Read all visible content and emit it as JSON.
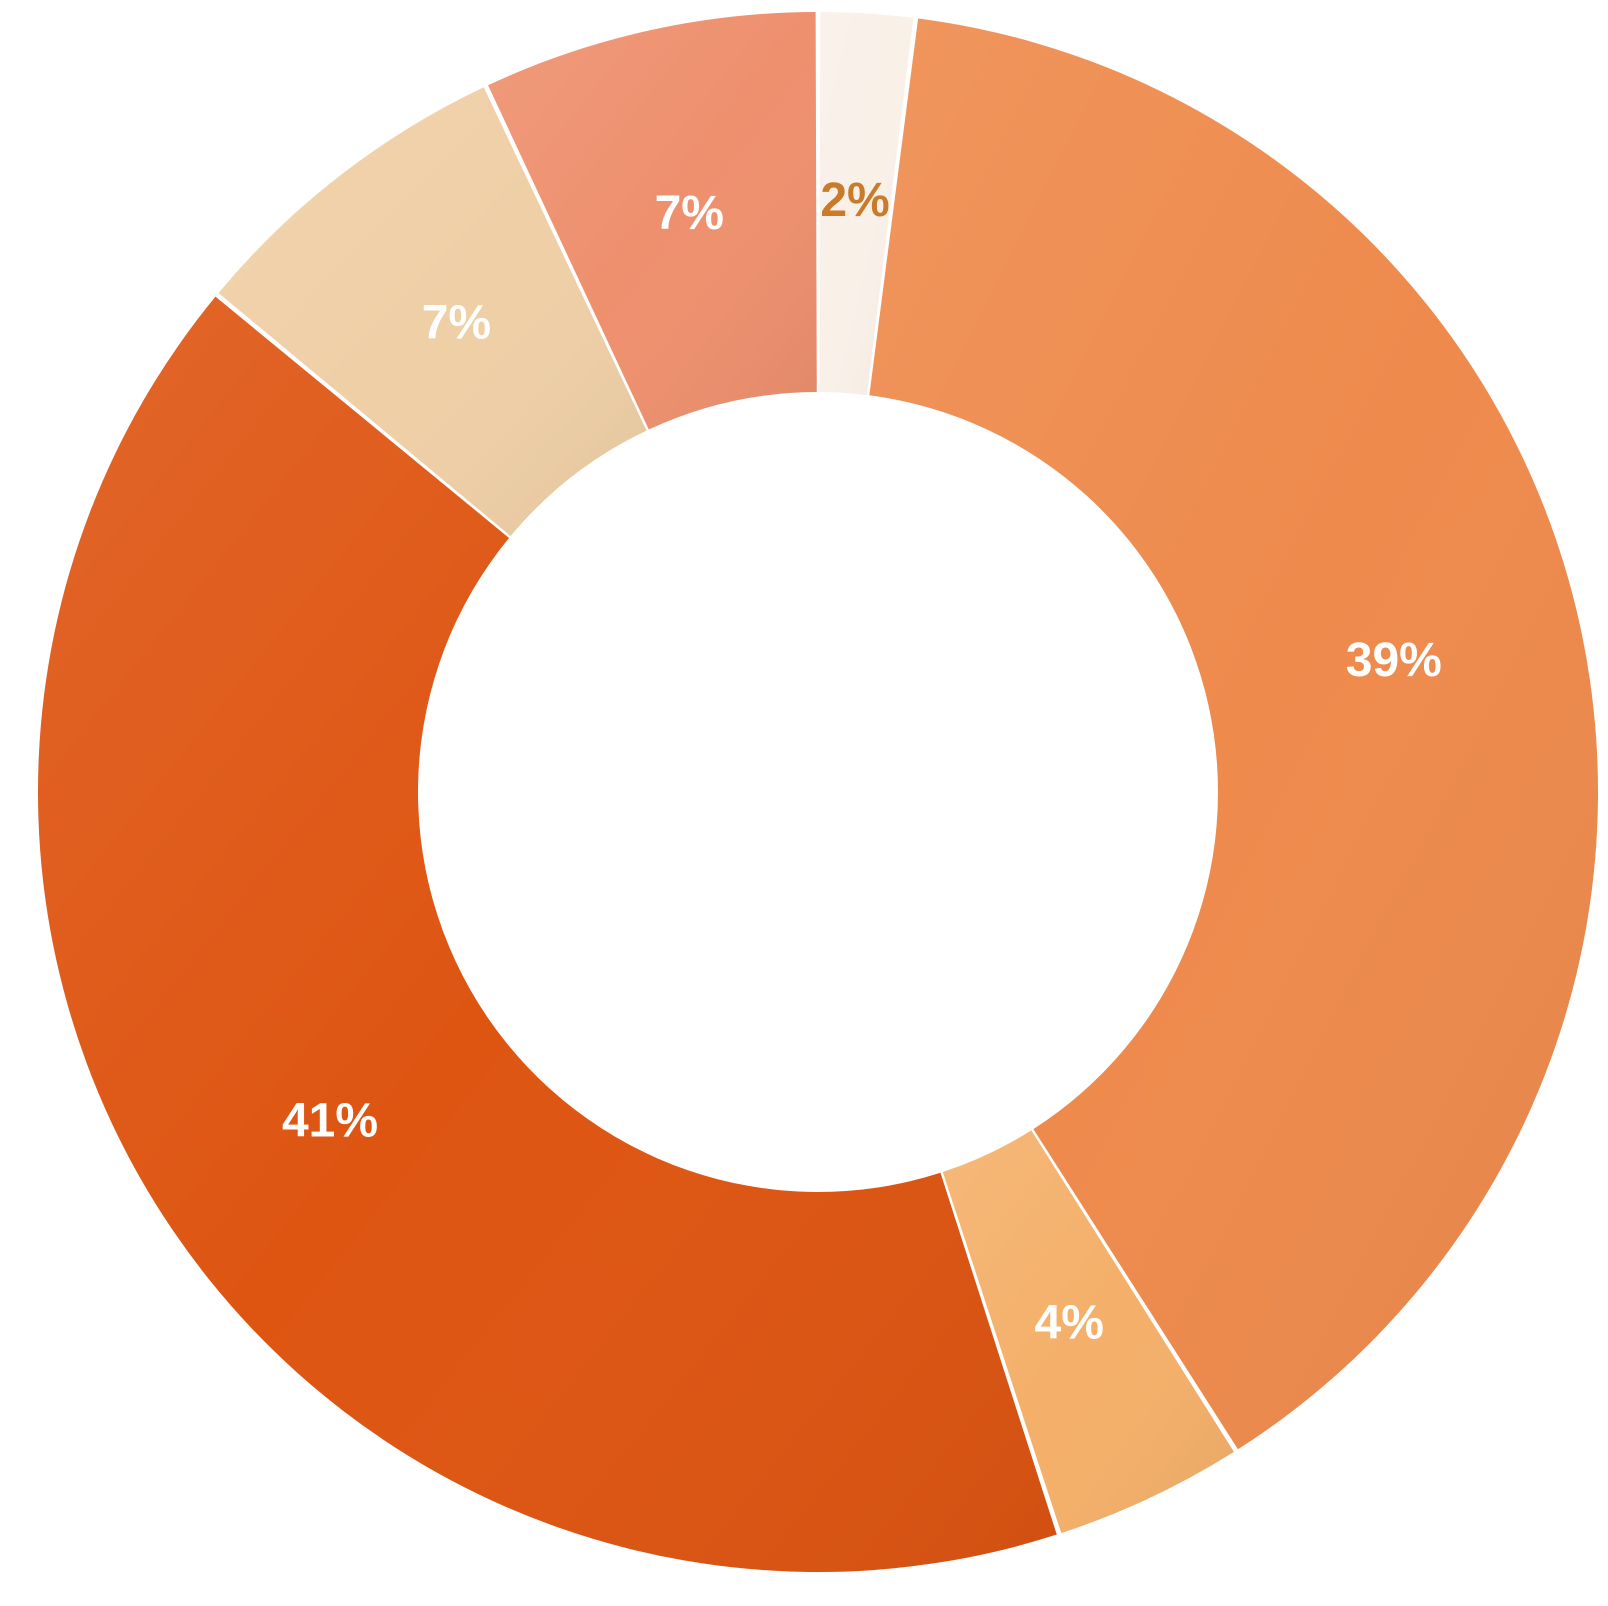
{
  "chart_data": {
    "type": "donut",
    "start_angle_deg": 0,
    "direction": "clockwise",
    "slices": [
      {
        "label": "2%",
        "value": 2,
        "color": "#F9F0E8",
        "label_color": "#C97A2A"
      },
      {
        "label": "39%",
        "value": 39,
        "color": "#EE8A4C",
        "label_color": "#FFFFFF"
      },
      {
        "label": "4%",
        "value": 4,
        "color": "#F4B06A",
        "label_color": "#FFFFFF"
      },
      {
        "label": "41%",
        "value": 41,
        "color": "#DE5512",
        "label_color": "#FFFFFF"
      },
      {
        "label": "7%",
        "value": 7,
        "color": "#EFCFA6",
        "label_color": "#FFFFFF"
      },
      {
        "label": "7%",
        "value": 7,
        "color": "#EE906E",
        "label_color": "#FFFFFF"
      }
    ]
  }
}
